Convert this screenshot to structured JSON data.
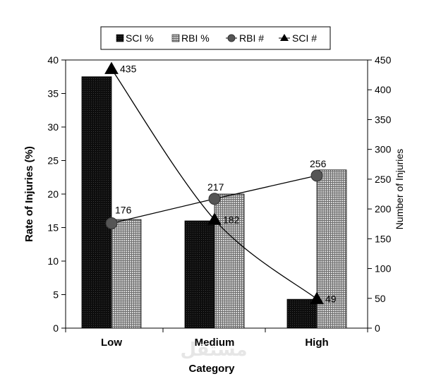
{
  "chart_data": {
    "type": "bar",
    "title": "",
    "categories": [
      "Low",
      "Medium",
      "High"
    ],
    "xlabel": "Category",
    "ylabel": "Rate of Injuries (%)",
    "y2label": "Number of Injuries",
    "ylim": [
      0,
      40
    ],
    "y2lim": [
      0,
      450
    ],
    "yticks": [
      "0",
      "5",
      "10",
      "15",
      "20",
      "25",
      "30",
      "35",
      "40"
    ],
    "y2ticks": [
      "0",
      "50",
      "100",
      "150",
      "200",
      "250",
      "300",
      "350",
      "400",
      "450"
    ],
    "grid": false,
    "legend_position": "top",
    "bar_series": [
      {
        "name": "SCI %",
        "values": [
          37.5,
          16.0,
          4.3
        ],
        "color": "#1a1a1a"
      },
      {
        "name": "RBI %",
        "values": [
          16.2,
          20.0,
          23.6
        ],
        "color": "#9a9a9a"
      }
    ],
    "line_series": [
      {
        "name": "RBI #",
        "values": [
          176,
          217,
          256
        ],
        "labels": [
          "176",
          "217",
          "256"
        ],
        "marker": "circle",
        "axis": "right",
        "color": "#555555"
      },
      {
        "name": "SCI #",
        "values": [
          435,
          182,
          49
        ],
        "labels": [
          "435",
          "182",
          "49"
        ],
        "marker": "triangle",
        "axis": "right",
        "color": "#000000"
      }
    ]
  },
  "watermark": "مستقل"
}
